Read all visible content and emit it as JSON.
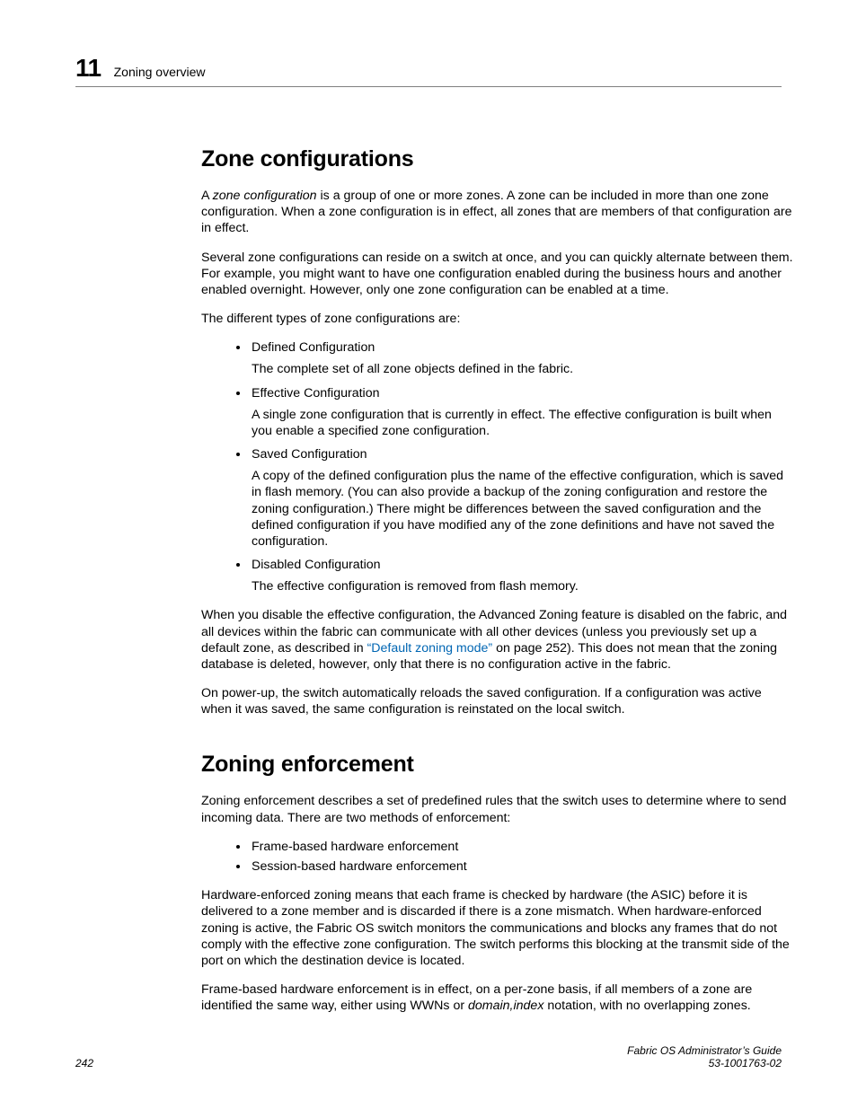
{
  "header": {
    "chapter_number": "11",
    "chapter_title": "Zoning overview"
  },
  "section1": {
    "heading": "Zone configurations",
    "intro_pre": "A ",
    "intro_term": "zone configuration",
    "intro_post": " is a group of one or more zones. A zone can be included in more than one zone configuration. When a zone configuration is in effect, all zones that are members of that configuration are in effect.",
    "para2": "Several zone configurations can reside on a switch at once, and you can quickly alternate between them. For example, you might want to have one configuration enabled during the business hours and another enabled overnight. However, only one zone configuration can be enabled at a time.",
    "para3": "The different types of zone configurations are:",
    "items": [
      {
        "term": "Defined Configuration",
        "desc": "The complete set of all zone objects defined in the fabric."
      },
      {
        "term": "Effective Configuration",
        "desc": "A single zone configuration that is currently in effect. The effective configuration is built when you enable a specified zone configuration."
      },
      {
        "term": "Saved Configuration",
        "desc": "A copy of the defined configuration plus the name of the effective configuration, which is saved in flash memory. (You can also provide a backup of the zoning configuration and restore the zoning configuration.) There might be differences between the saved configuration and the defined configuration if you have modified any of the zone definitions and have not saved the configuration."
      },
      {
        "term": "Disabled Configuration",
        "desc": "The effective configuration is removed from flash memory."
      }
    ],
    "para4_pre": "When you disable the effective configuration, the Advanced Zoning feature is disabled on the fabric, and all devices within the fabric can communicate with all other devices (unless you previously set up a default zone, as described in ",
    "para4_link": "“Default zoning mode”",
    "para4_post": " on page 252). This does not mean that the zoning database is deleted, however, only that there is no configuration active in the fabric.",
    "para5": "On power-up, the switch automatically reloads the saved configuration. If a configuration was active when it was saved, the same configuration is reinstated on the local switch."
  },
  "section2": {
    "heading": "Zoning enforcement",
    "para1": "Zoning enforcement describes a set of predefined rules that the switch uses to determine where to send incoming data. There are two methods of enforcement:",
    "items": [
      "Frame-based hardware enforcement",
      "Session-based hardware enforcement"
    ],
    "para2": "Hardware-enforced zoning means that each frame is checked by hardware (the ASIC) before it is delivered to a zone member and is discarded if there is a zone mismatch. When hardware-enforced zoning is active, the Fabric OS switch monitors the communications and blocks any frames that do not comply with the effective zone configuration. The switch performs this blocking at the transmit side of the port on which the destination device is located.",
    "para3_pre": "Frame-based hardware enforcement is in effect, on a per-zone basis, if all members of a zone are identified the same way, either using WWNs or ",
    "para3_term": "domain,index",
    "para3_post": " notation, with no overlapping zones."
  },
  "footer": {
    "page_number": "242",
    "doc_title": "Fabric OS Administrator’s Guide",
    "doc_id": "53-1001763-02"
  },
  "link_color": "#0066b3"
}
